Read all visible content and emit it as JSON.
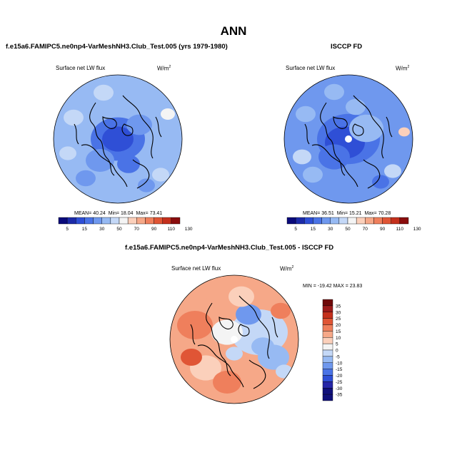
{
  "title": "ANN",
  "palette": {
    "abs": [
      "#0a0a7a",
      "#1c2aa8",
      "#2f4fd6",
      "#4a73e6",
      "#6f98ee",
      "#97baf3",
      "#c4d8f7",
      "#f4f4f4",
      "#fbd0bb",
      "#f6a888",
      "#ef7f5c",
      "#e05535",
      "#c4301c",
      "#8a0d0d"
    ],
    "diff": [
      "#10107a",
      "#2626a8",
      "#2f4fd6",
      "#4a73e6",
      "#6f98ee",
      "#97baf3",
      "#c4d8f7",
      "#f4f4f4",
      "#fbd0bb",
      "#f6a888",
      "#ef7f5c",
      "#e05535",
      "#c4301c",
      "#9c1a1a",
      "#6e0808"
    ],
    "coast": "#000000"
  },
  "chart_data": [
    {
      "type": "heatmap",
      "projection": "north-polar-stereographic",
      "header": "f.e15a6.FAMIPC5.ne0np4-VarMeshNH3.Club_Test.005 (yrs 1979-1980)",
      "variable": "Surface net LW flux",
      "units": "W/m",
      "units_exp": "2",
      "stats": {
        "mean_label": "MEAN=",
        "mean": "40.24",
        "min_label": "Min=",
        "min": "18.04",
        "max_label": "Max=",
        "max": "73.41"
      },
      "colorbar_ticks": [
        "5",
        "15",
        "30",
        "50",
        "70",
        "90",
        "110",
        "130"
      ],
      "colorbar_levels": [
        5,
        10,
        15,
        20,
        30,
        40,
        50,
        60,
        70,
        80,
        90,
        100,
        110,
        120,
        130
      ]
    },
    {
      "type": "heatmap",
      "projection": "north-polar-stereographic",
      "header": "ISCCP FD",
      "variable": "Surface net LW flux",
      "units": "W/m",
      "units_exp": "2",
      "stats": {
        "mean_label": "MEAN=",
        "mean": "36.51",
        "min_label": "Min=",
        "min": "15.21",
        "max_label": "Max=",
        "max": "70.28"
      },
      "colorbar_ticks": [
        "5",
        "15",
        "30",
        "50",
        "70",
        "90",
        "110",
        "130"
      ],
      "colorbar_levels": [
        5,
        10,
        15,
        20,
        30,
        40,
        50,
        60,
        70,
        80,
        90,
        100,
        110,
        120,
        130
      ]
    },
    {
      "type": "heatmap",
      "projection": "north-polar-stereographic",
      "header": "f.e15a6.FAMIPC5.ne0np4-VarMeshNH3.Club_Test.005 - ISCCP FD",
      "variable": "Surface net LW flux",
      "units": "W/m",
      "units_exp": "2",
      "stats_text": "MIN = -19.42  MAX = 23.83",
      "colorbar_ticks": [
        "35",
        "30",
        "25",
        "20",
        "15",
        "10",
        "5",
        "0",
        "-5",
        "-10",
        "-15",
        "-20",
        "-25",
        "-30",
        "-35"
      ]
    }
  ]
}
